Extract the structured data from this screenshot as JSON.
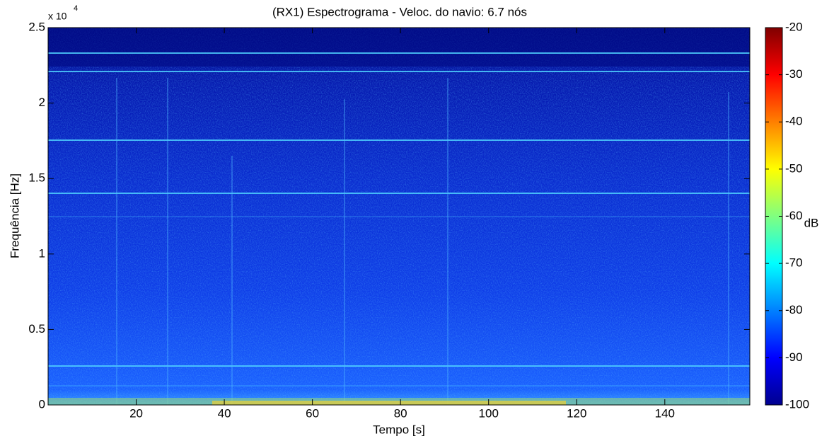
{
  "chart_data": {
    "type": "spectrogram",
    "title": "(RX1) Espectrograma - Veloc. do navio: 6.7 nós",
    "x_label": "Tempo [s]",
    "y_label": "Frequência [Hz]",
    "y_multiplier": "x 10",
    "y_multiplier_exp": "4",
    "xlim": [
      0,
      159.3
    ],
    "xticks": [
      20,
      40,
      60,
      80,
      100,
      120,
      140
    ],
    "ylim": [
      0,
      25000
    ],
    "yticks": [
      {
        "value": 0,
        "label": "0"
      },
      {
        "value": 5000,
        "label": "0.5"
      },
      {
        "value": 10000,
        "label": "1"
      },
      {
        "value": 15000,
        "label": "1.5"
      },
      {
        "value": 20000,
        "label": "2"
      },
      {
        "value": 25000,
        "label": "2.5"
      }
    ],
    "colorbar": {
      "label": "dB",
      "colormap": "jet",
      "lim": [
        -100,
        -20
      ],
      "ticks": [
        -100,
        -90,
        -80,
        -70,
        -60,
        -50,
        -40,
        -30,
        -20
      ]
    }
  }
}
